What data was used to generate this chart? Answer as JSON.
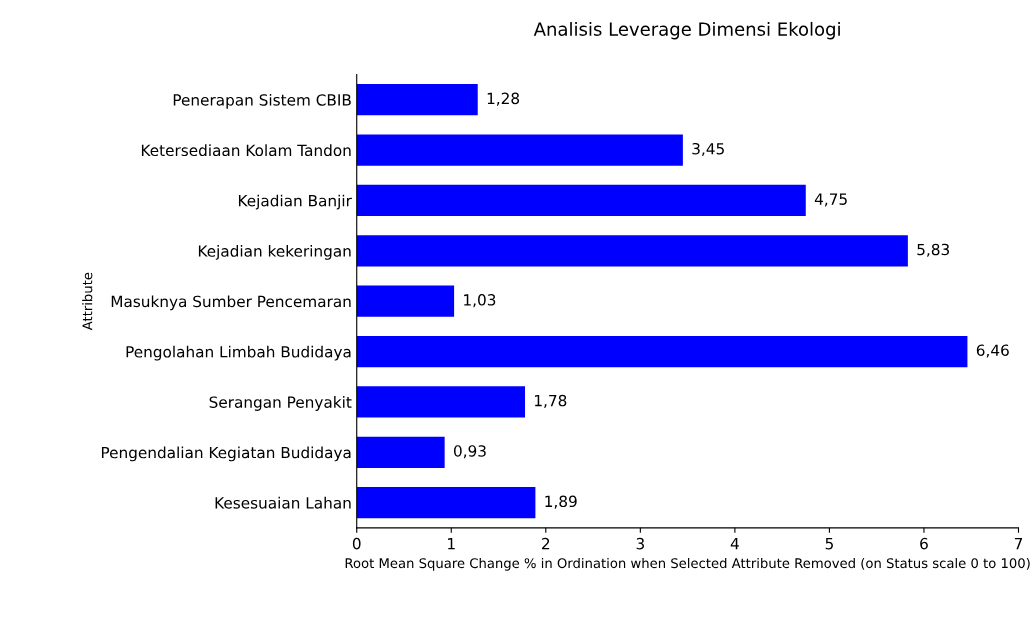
{
  "chart_data": {
    "type": "bar",
    "orientation": "horizontal",
    "title": "Analisis Leverage Dimensi Ekologi",
    "xlabel": "Root Mean Square Change % in Ordination when Selected Attribute Removed (on Status scale 0 to 100)",
    "ylabel": "Attribute",
    "categories": [
      "Penerapan Sistem CBIB",
      "Ketersediaan Kolam Tandon",
      "Kejadian Banjir",
      "Kejadian kekeringan",
      "Masuknya Sumber Pencemaran",
      "Pengolahan Limbah Budidaya",
      "Serangan Penyakit",
      "Pengendalian Kegiatan Budidaya",
      "Kesesuaian Lahan"
    ],
    "values": [
      1.28,
      3.45,
      4.75,
      5.83,
      1.03,
      6.46,
      1.78,
      0.93,
      1.89
    ],
    "value_labels": [
      "1,28",
      "3,45",
      "4,75",
      "5,83",
      "1,03",
      "6,46",
      "1,78",
      "0,93",
      "1,89"
    ],
    "color": "#0000ff",
    "xlim": [
      0,
      7
    ],
    "xticks": [
      0,
      1,
      2,
      3,
      4,
      5,
      6,
      7
    ],
    "grid": false,
    "legend": false
  }
}
